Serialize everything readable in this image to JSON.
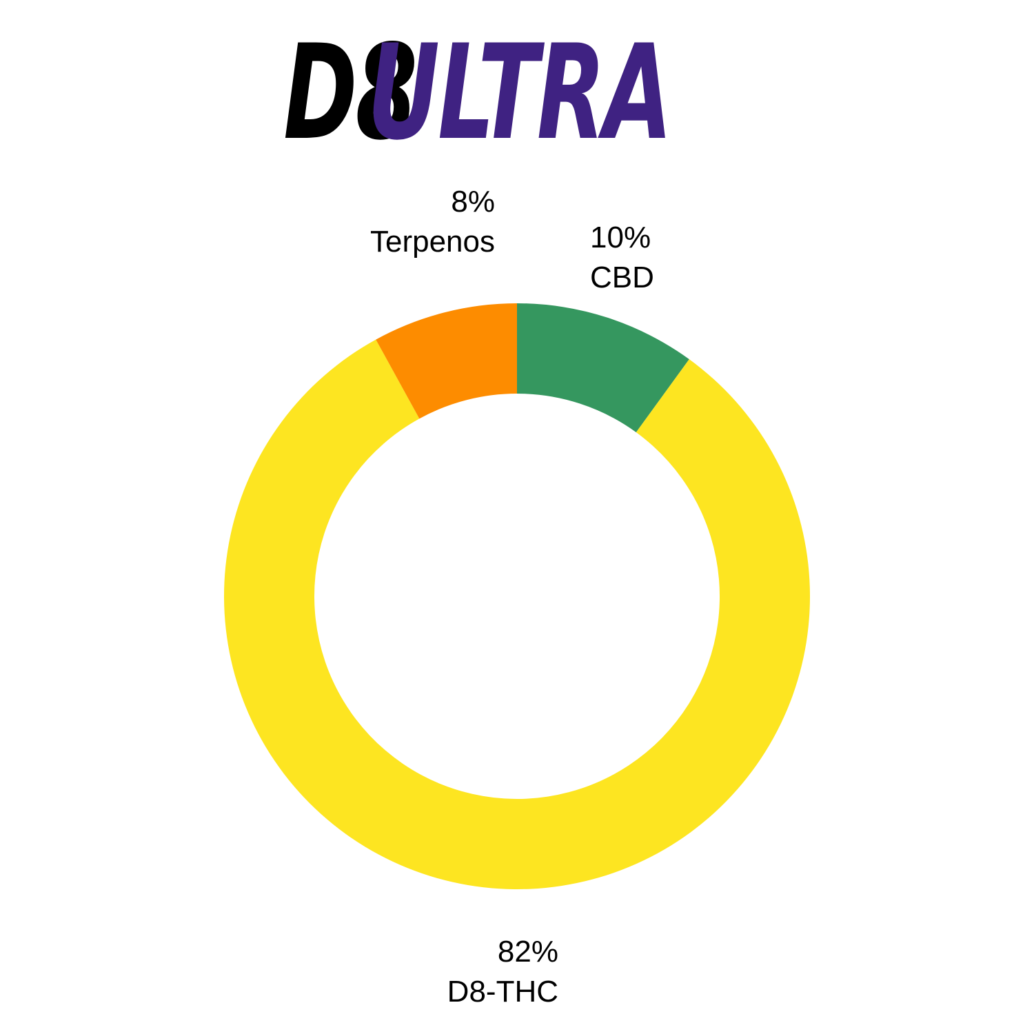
{
  "title": {
    "part1": "D8",
    "part2": "ULTRA",
    "part1_color": "#000000",
    "part2_color": "#3f2282"
  },
  "chart_data": {
    "type": "pie",
    "donut": true,
    "start": "top",
    "direction": "clockwise",
    "slices": [
      {
        "label": "CBD",
        "value": 10,
        "value_label": "10%",
        "color": "#35975f"
      },
      {
        "label": "D8-THC",
        "value": 82,
        "value_label": "82%",
        "color": "#fde521"
      },
      {
        "label": "Terpenos",
        "value": 8,
        "value_label": "8%",
        "color": "#fd8c00"
      }
    ]
  }
}
